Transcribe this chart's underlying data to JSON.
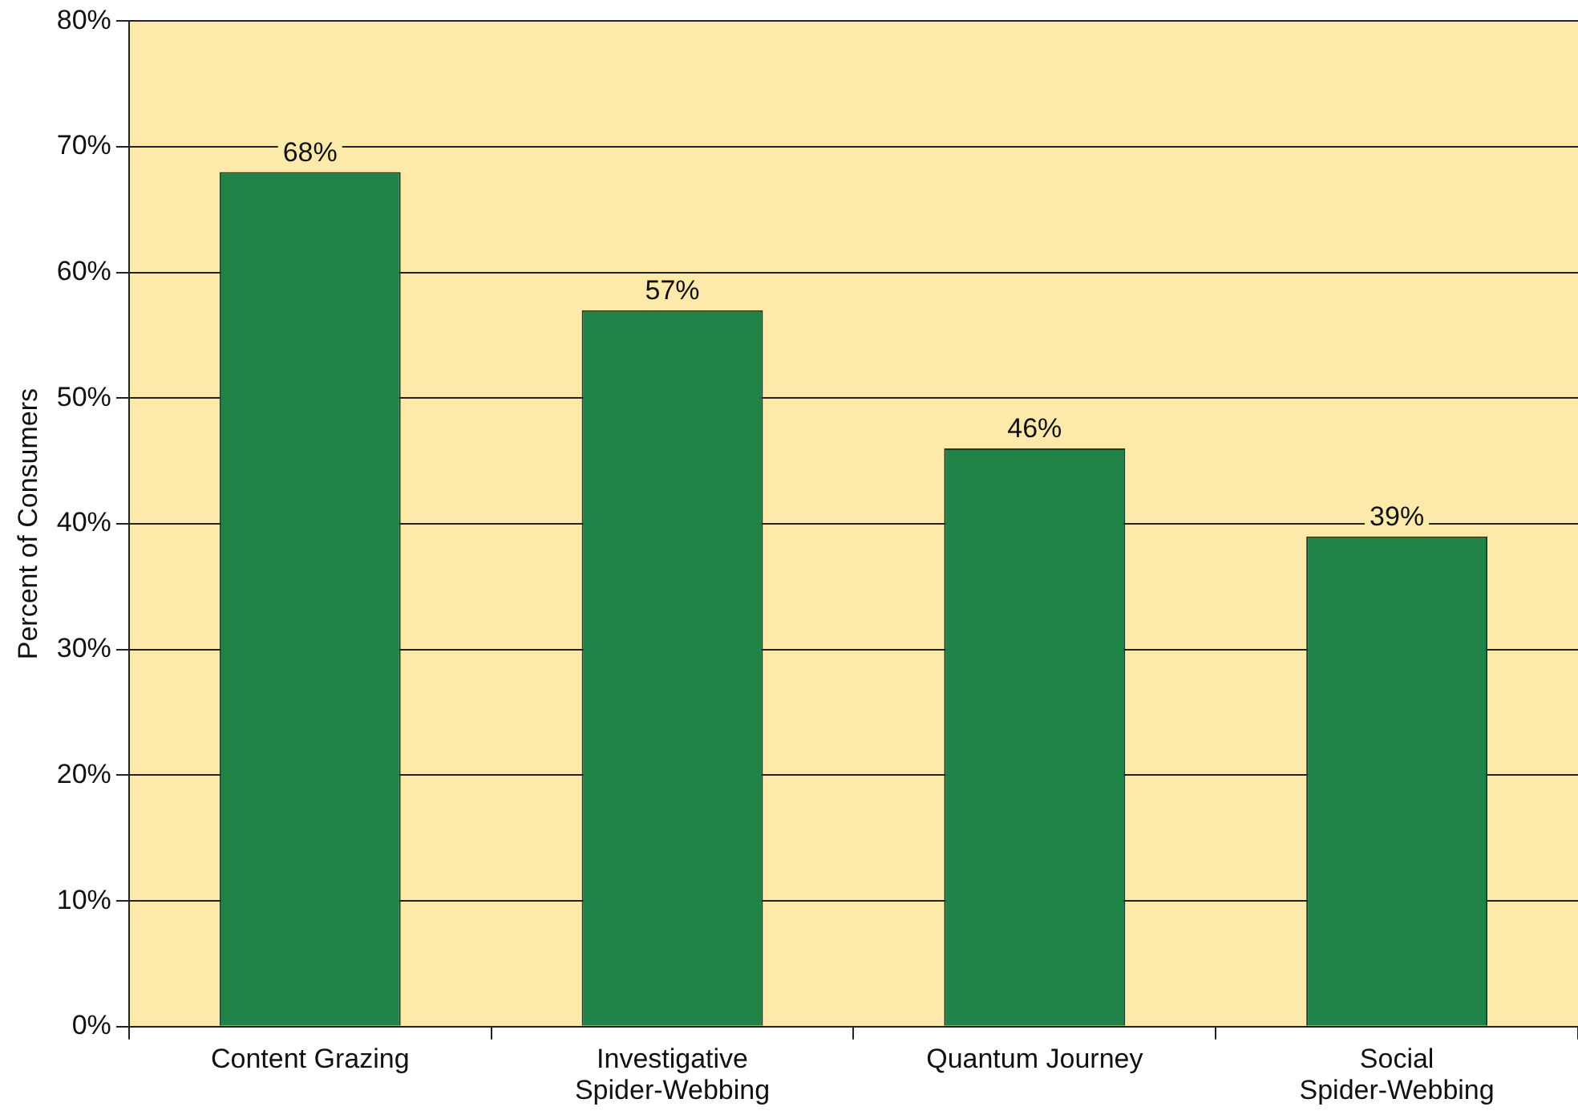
{
  "chart_data": {
    "type": "bar",
    "ylabel": "Percent of Consumers",
    "categories": [
      "Content Grazing",
      "Investigative Spider-Webbing",
      "Quantum Journey",
      "Social Spider-Webbing"
    ],
    "values": [
      68,
      57,
      46,
      39
    ],
    "value_labels": [
      "68%",
      "57%",
      "46%",
      "39%"
    ],
    "color": "#1f8246",
    "ylim": [
      0,
      80
    ],
    "yticks": [
      {
        "value": 0,
        "label": "0%"
      },
      {
        "value": 10,
        "label": "10%"
      },
      {
        "value": 20,
        "label": "20%"
      },
      {
        "value": 30,
        "label": "30%"
      },
      {
        "value": 40,
        "label": "40%"
      },
      {
        "value": 50,
        "label": "50%"
      },
      {
        "value": 60,
        "label": "60%"
      },
      {
        "value": 70,
        "label": "70%"
      },
      {
        "value": 80,
        "label": "80%"
      }
    ],
    "grid": "y",
    "legend": false
  }
}
